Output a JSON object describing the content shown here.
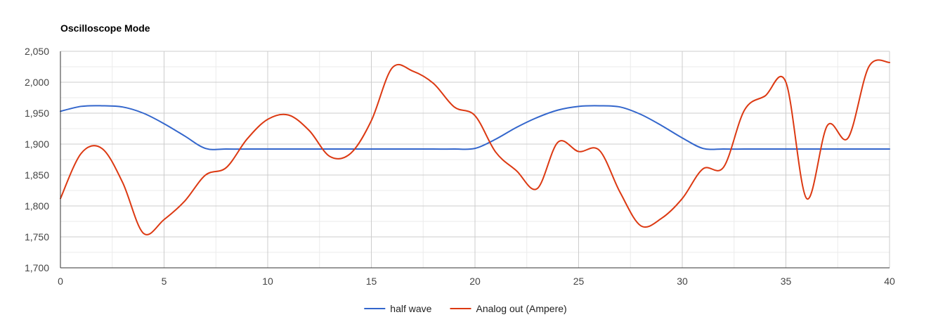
{
  "chart_data": {
    "type": "line",
    "title": "Oscilloscope Mode",
    "xlabel": "",
    "ylabel": "",
    "xlim": [
      0,
      40
    ],
    "ylim": [
      1700,
      2050
    ],
    "x_ticks": [
      0,
      5,
      10,
      15,
      20,
      25,
      30,
      35,
      40
    ],
    "x_tick_labels": [
      "0",
      "5",
      "10",
      "15",
      "20",
      "25",
      "30",
      "35",
      "40"
    ],
    "y_ticks": [
      1700,
      1750,
      1800,
      1850,
      1900,
      1950,
      2000,
      2050
    ],
    "y_tick_labels": [
      "1,700",
      "1,750",
      "1,800",
      "1,850",
      "1,900",
      "1,950",
      "2,000",
      "2,050"
    ],
    "grid": true,
    "legend_position": "bottom",
    "series": [
      {
        "name": "half wave",
        "color": "#3366cc",
        "points": [
          [
            0,
            1953
          ],
          [
            1,
            1961
          ],
          [
            2,
            1962
          ],
          [
            3,
            1960
          ],
          [
            4,
            1950
          ],
          [
            5,
            1933
          ],
          [
            6,
            1913
          ],
          [
            7,
            1893
          ],
          [
            8,
            1892
          ],
          [
            9,
            1892
          ],
          [
            10,
            1892
          ],
          [
            11,
            1892
          ],
          [
            12,
            1892
          ],
          [
            13,
            1892
          ],
          [
            14,
            1892
          ],
          [
            15,
            1892
          ],
          [
            16,
            1892
          ],
          [
            17,
            1892
          ],
          [
            18,
            1892
          ],
          [
            19,
            1892
          ],
          [
            20,
            1893
          ],
          [
            21,
            1908
          ],
          [
            22,
            1927
          ],
          [
            23,
            1943
          ],
          [
            24,
            1955
          ],
          [
            25,
            1961
          ],
          [
            26,
            1962
          ],
          [
            27,
            1960
          ],
          [
            28,
            1948
          ],
          [
            29,
            1930
          ],
          [
            30,
            1910
          ],
          [
            31,
            1893
          ],
          [
            32,
            1892
          ],
          [
            33,
            1892
          ],
          [
            34,
            1892
          ],
          [
            35,
            1892
          ],
          [
            36,
            1892
          ],
          [
            37,
            1892
          ],
          [
            38,
            1892
          ],
          [
            39,
            1892
          ],
          [
            40,
            1892
          ]
        ]
      },
      {
        "name": "Analog out (Ampere)",
        "color": "#dc3912",
        "points": [
          [
            0,
            1812
          ],
          [
            1,
            1885
          ],
          [
            2,
            1893
          ],
          [
            3,
            1838
          ],
          [
            4,
            1756
          ],
          [
            5,
            1778
          ],
          [
            6,
            1808
          ],
          [
            7,
            1850
          ],
          [
            8,
            1862
          ],
          [
            9,
            1908
          ],
          [
            10,
            1940
          ],
          [
            11,
            1947
          ],
          [
            12,
            1922
          ],
          [
            13,
            1880
          ],
          [
            14,
            1885
          ],
          [
            15,
            1938
          ],
          [
            16,
            2023
          ],
          [
            17,
            2018
          ],
          [
            18,
            1998
          ],
          [
            19,
            1960
          ],
          [
            20,
            1946
          ],
          [
            21,
            1887
          ],
          [
            22,
            1857
          ],
          [
            23,
            1828
          ],
          [
            24,
            1903
          ],
          [
            25,
            1888
          ],
          [
            26,
            1890
          ],
          [
            27,
            1822
          ],
          [
            28,
            1768
          ],
          [
            29,
            1780
          ],
          [
            30,
            1812
          ],
          [
            31,
            1860
          ],
          [
            32,
            1863
          ],
          [
            33,
            1955
          ],
          [
            34,
            1978
          ],
          [
            35,
            2000
          ],
          [
            36,
            1812
          ],
          [
            37,
            1930
          ],
          [
            38,
            1910
          ],
          [
            39,
            2025
          ],
          [
            40,
            2032
          ]
        ]
      }
    ]
  }
}
